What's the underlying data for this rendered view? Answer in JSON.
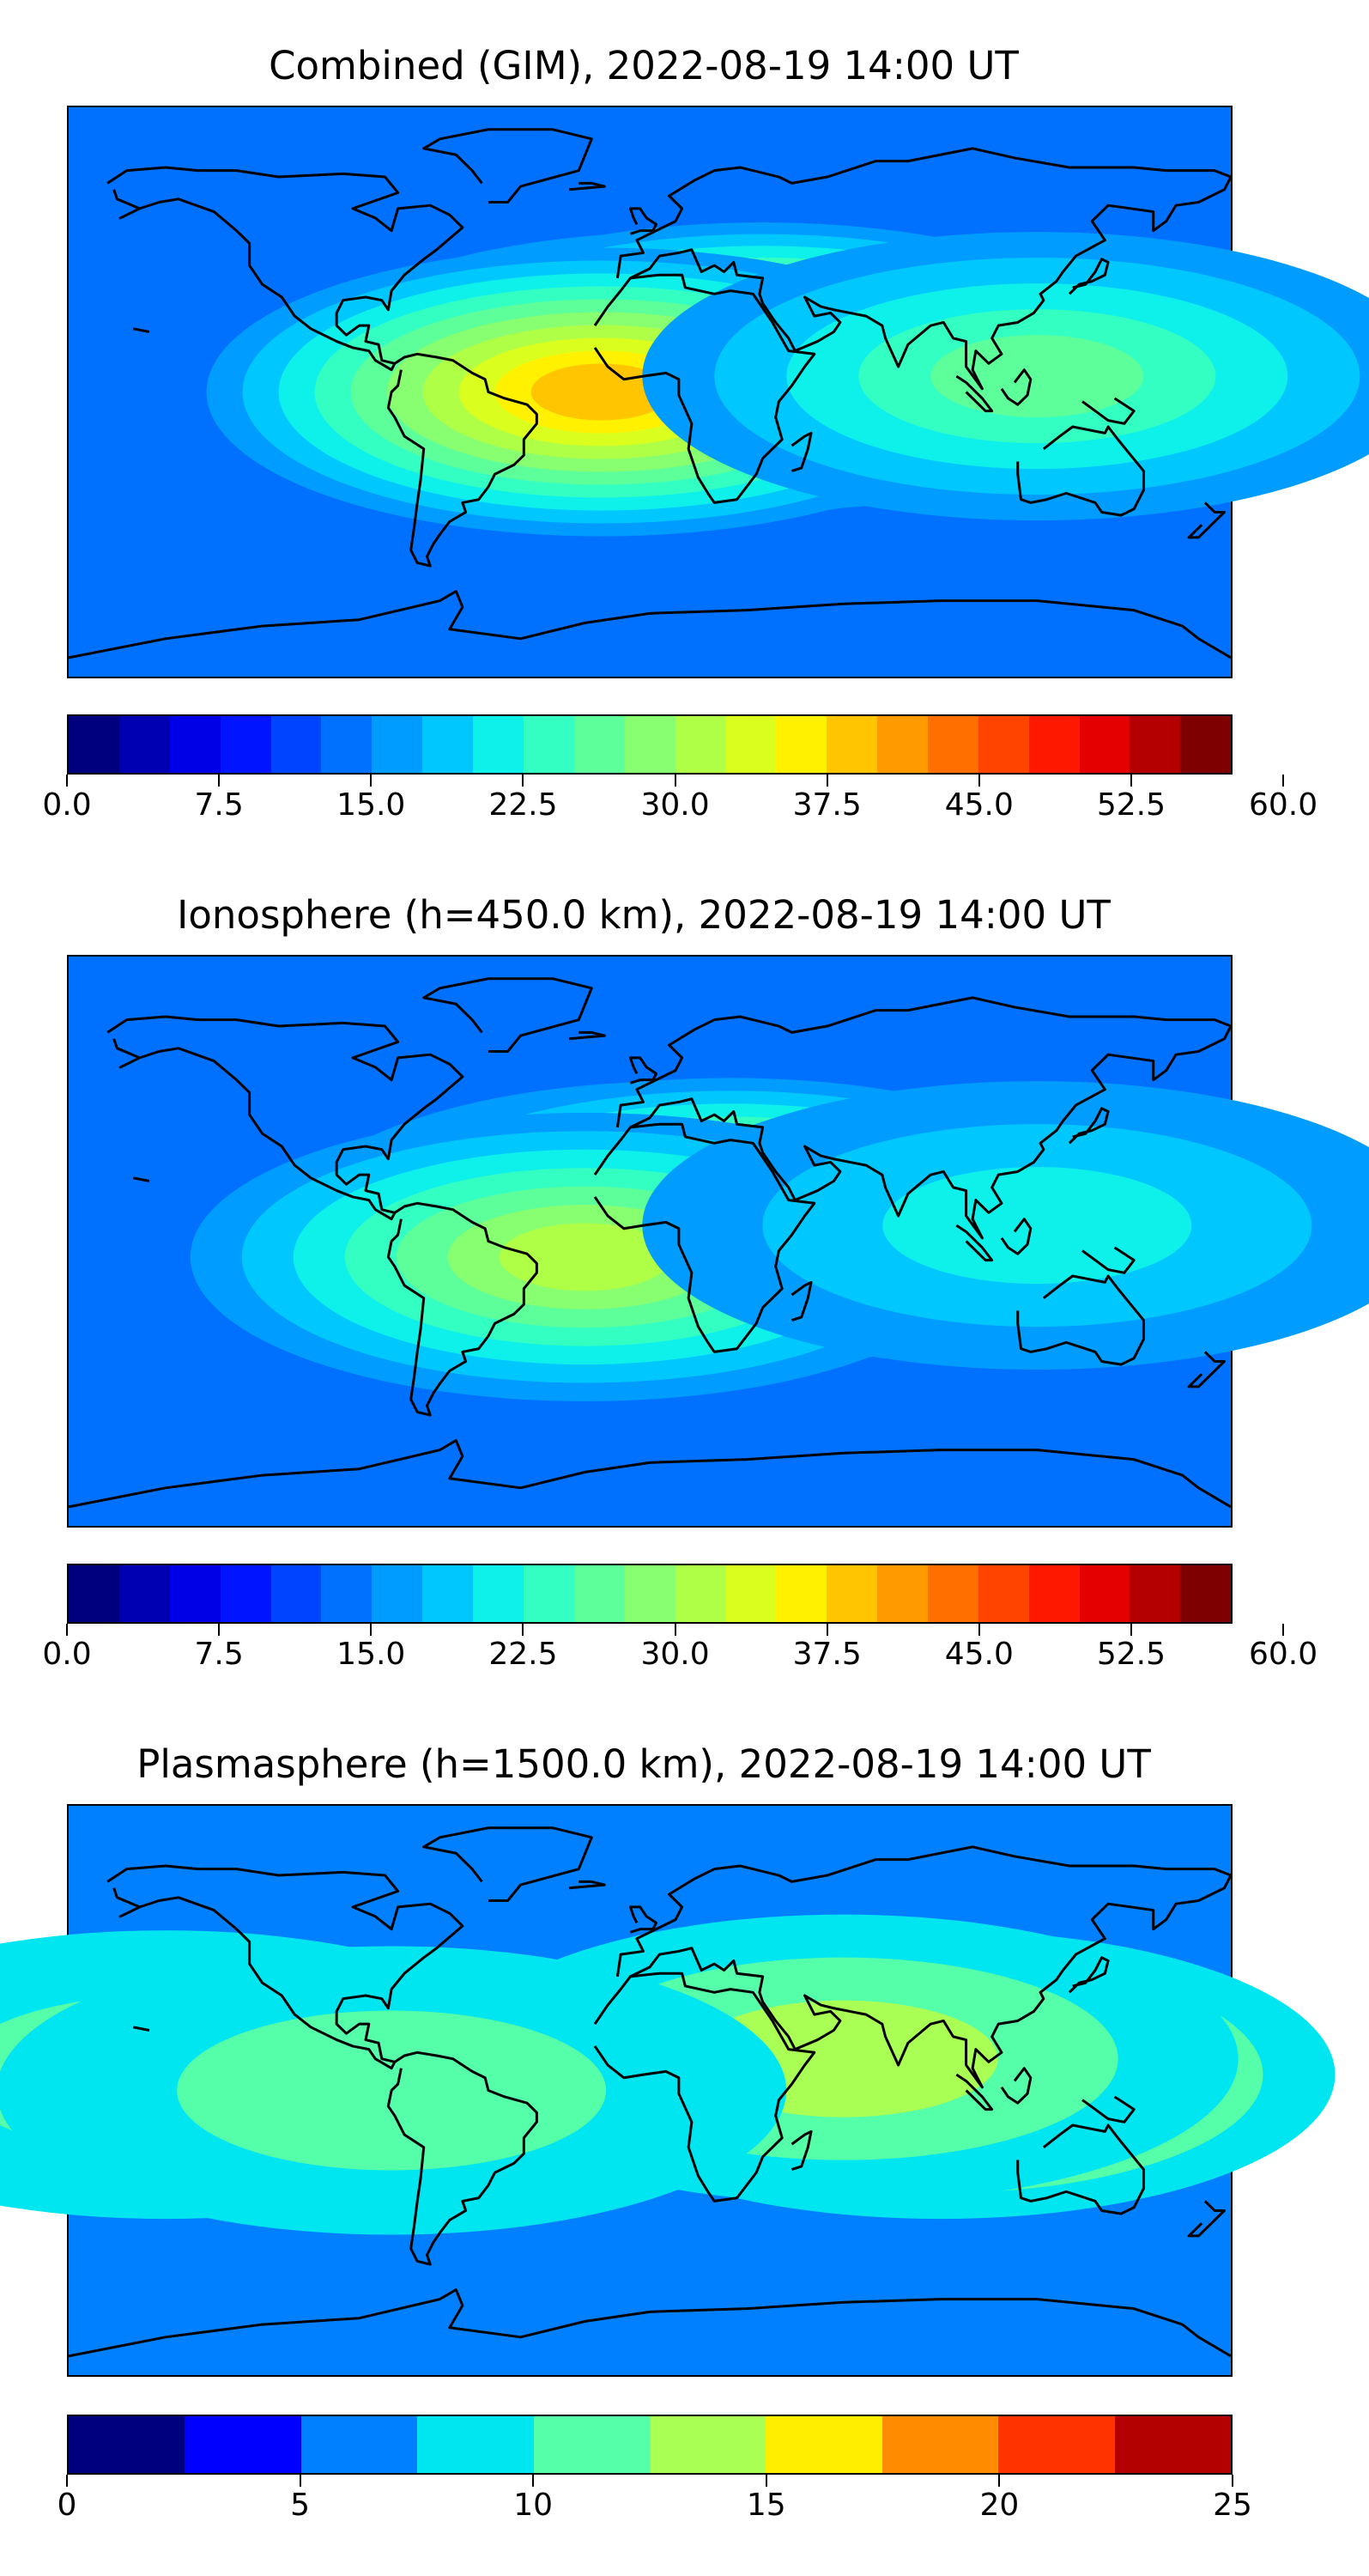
{
  "panels": [
    {
      "title": "Combined (GIM), 2022-08-19 14:00 UT",
      "colorbar": {
        "colors": [
          "#00007f",
          "#0000b2",
          "#0000e6",
          "#0014ff",
          "#0044ff",
          "#0070ff",
          "#009cff",
          "#00c8ff",
          "#0ef0ea",
          "#34ffc3",
          "#5dff9a",
          "#87ff70",
          "#b0ff47",
          "#daff1e",
          "#fff100",
          "#ffc600",
          "#ff9b00",
          "#ff6f00",
          "#ff4400",
          "#ff1800",
          "#e40000",
          "#b50000",
          "#7f0000"
        ],
        "tick_labels": [
          "0.0",
          "7.5",
          "15.0",
          "22.5",
          "30.0",
          "37.5",
          "45.0",
          "52.5",
          "60.0"
        ]
      },
      "hotspots": [
        {
          "lon": 10,
          "lat": 5,
          "level": 0.78
        },
        {
          "lon": 35,
          "lat": 8,
          "level": 0.72
        },
        {
          "lon": -15,
          "lat": 0,
          "level": 0.7
        },
        {
          "lon": 120,
          "lat": 5,
          "level": 0.45
        }
      ]
    },
    {
      "title": "Ionosphere  (h=450.0 km), 2022-08-19 14:00 UT",
      "colorbar": {
        "colors": [
          "#00007f",
          "#0000b2",
          "#0000e6",
          "#0014ff",
          "#0044ff",
          "#0070ff",
          "#009cff",
          "#00c8ff",
          "#0ef0ea",
          "#34ffc3",
          "#5dff9a",
          "#87ff70",
          "#b0ff47",
          "#daff1e",
          "#fff100",
          "#ffc600",
          "#ff9b00",
          "#ff6f00",
          "#ff4400",
          "#ff1800",
          "#e40000",
          "#b50000",
          "#7f0000"
        ],
        "tick_labels": [
          "0.0",
          "7.5",
          "15.0",
          "22.5",
          "30.0",
          "37.5",
          "45.0",
          "52.5",
          "60.0"
        ]
      },
      "hotspots": [
        {
          "lon": 10,
          "lat": 5,
          "level": 0.62
        },
        {
          "lon": 25,
          "lat": 6,
          "level": 0.66
        },
        {
          "lon": -20,
          "lat": -5,
          "level": 0.55
        },
        {
          "lon": 120,
          "lat": 5,
          "level": 0.38
        }
      ]
    },
    {
      "title": "Plasmasphere (h=1500.0 km), 2022-08-19 14:00 UT",
      "colorbar": {
        "colors": [
          "#00007f",
          "#0000ff",
          "#0080ff",
          "#00e6f0",
          "#55ffaa",
          "#aaff55",
          "#ffee00",
          "#ff8c00",
          "#ff3300",
          "#b30000"
        ],
        "tick_labels": [
          "0",
          "5",
          "10",
          "15",
          "20",
          "25"
        ]
      },
      "hotspots": [
        {
          "lon": 90,
          "lat": 5,
          "level": 0.78
        },
        {
          "lon": 60,
          "lat": 10,
          "level": 0.55
        },
        {
          "lon": -150,
          "lat": 5,
          "level": 0.45
        },
        {
          "lon": -80,
          "lat": 0,
          "level": 0.42
        }
      ]
    }
  ]
}
